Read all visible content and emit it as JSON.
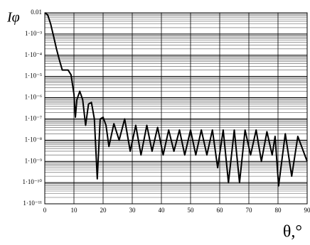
{
  "chart_data": {
    "type": "line",
    "y_label": "Iφ",
    "x_label": "θ,°",
    "color": "#000000",
    "y_log": true,
    "grid": true,
    "minor_grid": true,
    "xlim": [
      0,
      90
    ],
    "xticks": [
      0,
      10,
      20,
      30,
      40,
      50,
      60,
      70,
      80,
      90
    ],
    "ylim": [
      1e-11,
      0.01
    ],
    "yticks": [
      0.01,
      {
        "value": 0.001,
        "label": "1·10⁻³"
      },
      {
        "value": 0.0001,
        "label": "1·10⁻⁴"
      },
      {
        "value": 1e-05,
        "label": "1·10⁻⁵"
      },
      {
        "value": 1e-06,
        "label": "1·10⁻⁶"
      },
      {
        "value": 1e-07,
        "label": "1·10⁻⁷"
      },
      {
        "value": 1e-08,
        "label": "1·10⁻⁸"
      },
      {
        "value": 1e-09,
        "label": "1·10⁻⁹"
      },
      {
        "value": 1e-10,
        "label": "1·10⁻¹⁰"
      },
      {
        "value": 1e-11,
        "label": "1·10⁻¹¹"
      }
    ],
    "x": [
      0,
      1,
      2,
      3,
      4,
      5,
      6,
      7,
      8,
      9,
      10,
      10.5,
      11,
      12,
      13,
      14,
      15,
      16,
      17,
      18,
      19,
      20,
      21,
      22,
      23.7,
      25.5,
      27.4,
      29.3,
      31.2,
      33,
      35,
      36.8,
      38.7,
      40.6,
      42.5,
      44.3,
      46.2,
      48,
      50,
      51.8,
      53.7,
      55.6,
      57.5,
      59.3,
      61.2,
      63,
      65,
      66.8,
      68.7,
      70.6,
      72.5,
      74.3,
      76.2,
      78,
      79,
      80.2,
      82.5,
      84.7,
      86.8,
      90
    ],
    "values": [
      0.01,
      0.008,
      0.003,
      0.0008,
      0.0002,
      6e-05,
      2e-05,
      2e-05,
      2e-05,
      1.2e-05,
      1.5e-06,
      1.2e-07,
      8e-07,
      2e-06,
      8e-07,
      5e-08,
      5e-07,
      6e-07,
      1e-07,
      1.5e-10,
      1e-07,
      1.2e-07,
      5e-08,
      5e-09,
      6e-08,
      1e-08,
      1e-07,
      3e-09,
      5e-08,
      2e-09,
      5e-08,
      3e-09,
      4e-08,
      2e-09,
      3e-08,
      3e-09,
      3e-08,
      2e-09,
      3e-08,
      2e-09,
      3e-08,
      2e-09,
      3e-08,
      5e-10,
      3e-08,
      1e-10,
      3e-08,
      1e-10,
      3e-08,
      2e-09,
      3e-08,
      1e-09,
      2.5e-08,
      2e-09,
      1.5e-08,
      7e-11,
      2e-08,
      2e-10,
      1.5e-08,
      1e-09
    ]
  }
}
